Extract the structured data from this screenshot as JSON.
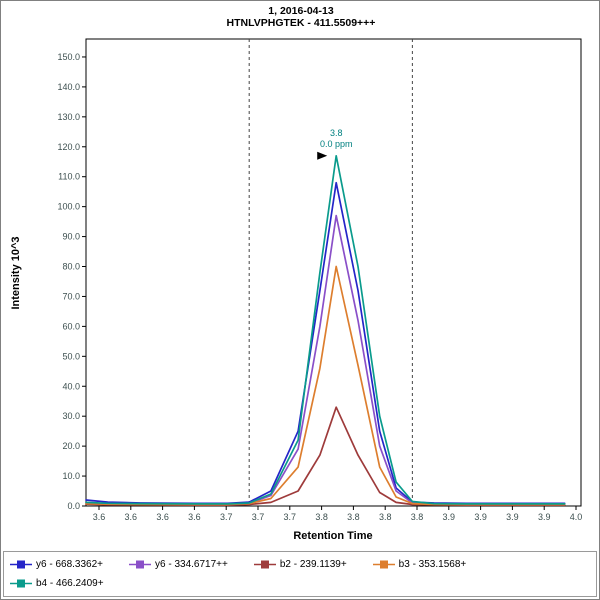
{
  "chart_data": {
    "type": "line",
    "title": "1, 2016-04-13",
    "subtitle": "HTNLVPHGTEK - 411.5509+++",
    "xlabel": "Retention Time",
    "ylabel": "Intensity 10^3",
    "xlim": [
      3.55,
      4.005
    ],
    "ylim": [
      0,
      156
    ],
    "y_ticks": [
      0,
      10,
      20,
      30,
      40,
      50,
      60,
      70,
      80,
      90,
      100,
      110,
      120,
      130,
      140,
      150
    ],
    "x_tick_labels": [
      "3.6",
      "3.6",
      "3.6",
      "3.6",
      "3.7",
      "3.7",
      "3.7",
      "3.8",
      "3.8",
      "3.8",
      "3.8",
      "3.9",
      "3.9",
      "3.9",
      "3.9",
      "4.0"
    ],
    "peak_boundaries": [
      3.7,
      3.85
    ],
    "annotation": {
      "rt_label": "3.8",
      "ppm_label": "0.0 ppm",
      "x": 3.78,
      "y": 117,
      "color": "#008080"
    },
    "grid": false,
    "legend_position": "bottom",
    "x": [
      3.55,
      3.57,
      3.6,
      3.65,
      3.68,
      3.7,
      3.72,
      3.745,
      3.765,
      3.78,
      3.8,
      3.82,
      3.835,
      3.85,
      3.87,
      3.9,
      3.95,
      3.99
    ],
    "series": [
      {
        "id": "y6-668",
        "name": "y6 - 668.3362+",
        "color": "#2525C8",
        "values": [
          2.0,
          1.3,
          1.0,
          0.9,
          0.9,
          1.3,
          5.0,
          25,
          72,
          108,
          72,
          25,
          6.0,
          1.3,
          1.0,
          0.9,
          0.9,
          0.9
        ]
      },
      {
        "id": "y6-334",
        "name": "y6 - 334.6717++",
        "color": "#8A4FC8",
        "values": [
          1.0,
          0.8,
          0.7,
          0.6,
          0.6,
          0.9,
          3.5,
          19,
          60,
          97,
          62,
          20,
          5.0,
          1.0,
          0.7,
          0.6,
          0.6,
          0.6
        ]
      },
      {
        "id": "b2",
        "name": "b2 - 239.1139+",
        "color": "#9E3B3B",
        "values": [
          0.6,
          0.4,
          0.4,
          0.3,
          0.3,
          0.5,
          1.2,
          5,
          17,
          33,
          17,
          4.5,
          1.2,
          0.5,
          0.4,
          0.3,
          0.3,
          0.3
        ]
      },
      {
        "id": "b3",
        "name": "b3 - 353.1568+",
        "color": "#DD7E2E",
        "values": [
          0.8,
          0.6,
          0.5,
          0.5,
          0.5,
          0.8,
          2.5,
          13,
          46,
          80,
          47,
          13,
          3.0,
          0.8,
          0.5,
          0.5,
          0.5,
          0.5
        ]
      },
      {
        "id": "b4",
        "name": "b4 - 466.2409+",
        "color": "#0A9B8C",
        "values": [
          1.2,
          0.9,
          0.8,
          0.7,
          0.7,
          1.0,
          4.0,
          22,
          78,
          117,
          80,
          30,
          8.0,
          1.5,
          0.8,
          0.7,
          0.7,
          0.7
        ]
      }
    ],
    "legend_rows": [
      4,
      1
    ]
  }
}
